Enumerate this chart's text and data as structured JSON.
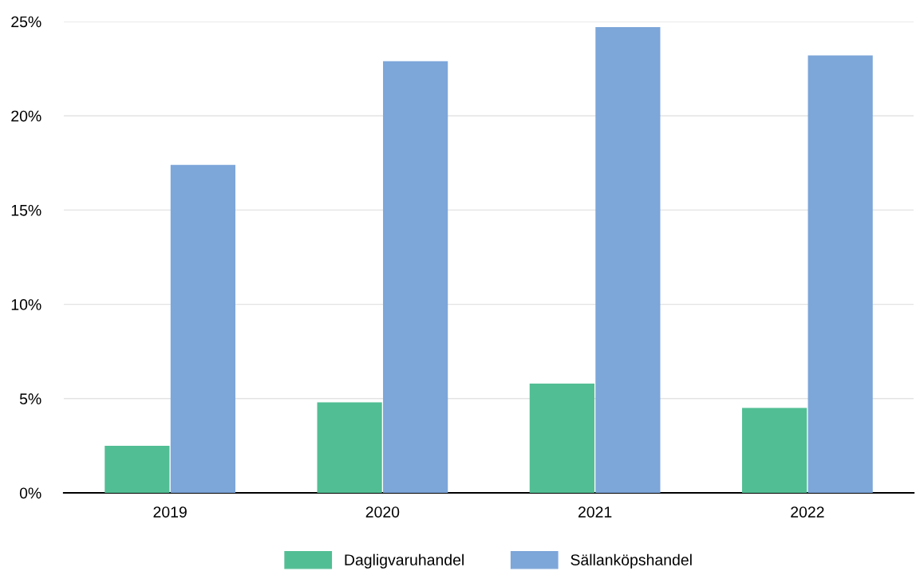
{
  "chart_data": {
    "type": "bar",
    "categories": [
      "2019",
      "2020",
      "2021",
      "2022"
    ],
    "series": [
      {
        "name": "Dagligvaruhandel",
        "color": "#52be94",
        "values": [
          2.5,
          4.8,
          5.8,
          4.5
        ]
      },
      {
        "name": "Sällanköpshandel",
        "color": "#7da6d9",
        "values": [
          17.4,
          22.9,
          24.7,
          23.2
        ]
      }
    ],
    "ylim": [
      0,
      25
    ],
    "yticks": [
      {
        "value": 0,
        "label": "0%"
      },
      {
        "value": 5,
        "label": "5%"
      },
      {
        "value": 10,
        "label": "10%"
      },
      {
        "value": 15,
        "label": "15%"
      },
      {
        "value": 20,
        "label": "20%"
      },
      {
        "value": 25,
        "label": "25%"
      }
    ],
    "grid": "y",
    "legend": "bottom"
  }
}
